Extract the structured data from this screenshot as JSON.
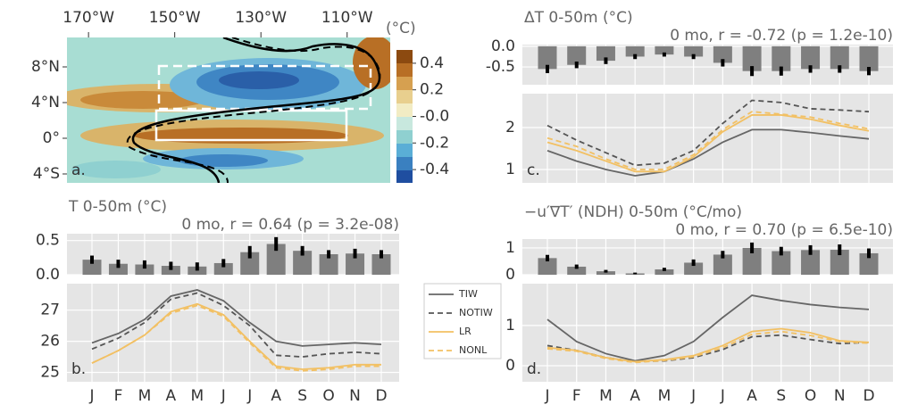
{
  "chart_data": [
    {
      "type": "contour",
      "panel_label": "a.",
      "colorbar_label": "(°C)",
      "xlim": [
        -175,
        -100
      ],
      "ylim": [
        -5,
        11.3
      ],
      "xticks": [
        {
          "value": -170,
          "label": "170°W"
        },
        {
          "value": -150,
          "label": "150°W"
        },
        {
          "value": -130,
          "label": "130°W"
        },
        {
          "value": -110,
          "label": "110°W"
        }
      ],
      "yticks": [
        {
          "value": 8,
          "label": "8°N"
        },
        {
          "value": 4,
          "label": "4°N"
        },
        {
          "value": 0,
          "label": "0°"
        },
        {
          "value": -4,
          "label": "4°S"
        }
      ],
      "clim": [
        -0.5,
        0.5
      ],
      "cticks": [
        0.4,
        0.2,
        {
          "value": 0,
          "label": "-0.0"
        },
        -0.2,
        -0.4
      ]
    },
    {
      "type": "bar",
      "title": "T 0-50m (°C)",
      "subtitle": "0 mo, r = 0.64 (p = 3.2e-08)",
      "values": [
        0.22,
        0.16,
        0.15,
        0.13,
        0.12,
        0.17,
        0.33,
        0.45,
        0.35,
        0.3,
        0.31,
        0.3
      ],
      "errors": [
        0.06,
        0.06,
        0.06,
        0.06,
        0.06,
        0.06,
        0.09,
        0.1,
        0.07,
        0.06,
        0.07,
        0.06
      ],
      "color": "#7f7f7f",
      "ylim": [
        0,
        0.6
      ],
      "yticks": [
        {
          "value": 0,
          "label": "0.0"
        },
        0.5
      ]
    },
    {
      "type": "line",
      "panel_label": "b.",
      "legend": "outside right",
      "categories": [
        "J",
        "F",
        "M",
        "A",
        "M",
        "J",
        "J",
        "A",
        "S",
        "O",
        "N",
        "D"
      ],
      "ylim": [
        24.7,
        27.85
      ],
      "yticks": [
        25,
        26,
        27
      ],
      "series": [
        {
          "name": "TIW",
          "color": "#666666",
          "dash": false,
          "values": [
            25.95,
            26.25,
            26.7,
            27.45,
            27.65,
            27.3,
            26.6,
            26.0,
            25.85,
            25.9,
            25.95,
            25.9
          ]
        },
        {
          "name": "NOTIW",
          "color": "#555555",
          "dash": true,
          "values": [
            25.75,
            26.1,
            26.6,
            27.35,
            27.55,
            27.15,
            26.5,
            25.55,
            25.5,
            25.6,
            25.65,
            25.6
          ]
        },
        {
          "name": "LR",
          "color": "#f2c063",
          "dash": false,
          "values": [
            25.3,
            25.7,
            26.2,
            26.95,
            27.2,
            26.85,
            26.0,
            25.2,
            25.1,
            25.15,
            25.25,
            25.25
          ]
        },
        {
          "name": "NONL",
          "color": "#f2c063",
          "dash": true,
          "values": [
            25.3,
            25.7,
            26.2,
            26.9,
            27.15,
            26.8,
            25.95,
            25.15,
            25.05,
            25.1,
            25.2,
            25.2
          ]
        }
      ]
    },
    {
      "type": "bar",
      "title": "ΔT 0-50m (°C)",
      "subtitle": "0 mo, r = -0.72 (p = 1.2e-10)",
      "values": [
        -0.55,
        -0.45,
        -0.35,
        -0.25,
        -0.2,
        -0.25,
        -0.4,
        -0.6,
        -0.6,
        -0.55,
        -0.55,
        -0.6
      ],
      "errors": [
        0.1,
        0.08,
        0.08,
        0.06,
        0.05,
        0.06,
        0.09,
        0.12,
        0.11,
        0.09,
        0.09,
        0.1
      ],
      "color": "#7f7f7f",
      "ylim": [
        -0.93,
        0.04
      ],
      "yticks": [
        {
          "value": 0,
          "label": "0.0"
        },
        -0.5
      ]
    },
    {
      "type": "line",
      "panel_label": "c.",
      "ylim": [
        0.68,
        2.81
      ],
      "yticks": [
        1,
        2
      ],
      "series": [
        {
          "color": "#666666",
          "dash": false,
          "values": [
            1.45,
            1.2,
            1.0,
            0.85,
            0.95,
            1.25,
            1.65,
            1.95,
            1.95,
            1.88,
            1.8,
            1.73
          ]
        },
        {
          "color": "#555555",
          "dash": true,
          "values": [
            2.05,
            1.7,
            1.4,
            1.1,
            1.15,
            1.45,
            2.1,
            2.65,
            2.6,
            2.45,
            2.42,
            2.38
          ]
        },
        {
          "color": "#f2c063",
          "dash": false,
          "values": [
            1.65,
            1.45,
            1.2,
            0.95,
            0.95,
            1.3,
            1.9,
            2.3,
            2.3,
            2.2,
            2.05,
            1.92
          ]
        },
        {
          "color": "#f2c063",
          "dash": true,
          "values": [
            1.75,
            1.55,
            1.25,
            1.0,
            1.0,
            1.35,
            1.95,
            2.38,
            2.32,
            2.25,
            2.1,
            1.97
          ]
        }
      ]
    },
    {
      "type": "bar",
      "title": "−u′∇T′ (NDH) 0-50m (°C/mo)",
      "subtitle": "0 mo, r = 0.70 (p = 6.5e-10)",
      "values": [
        0.62,
        0.3,
        0.13,
        0.05,
        0.2,
        0.45,
        0.75,
        1.0,
        0.88,
        0.92,
        0.93,
        0.8
      ],
      "errors": [
        0.12,
        0.08,
        0.05,
        0.03,
        0.06,
        0.12,
        0.14,
        0.2,
        0.16,
        0.18,
        0.2,
        0.18
      ],
      "color": "#7f7f7f",
      "ylim": [
        0,
        1.33
      ],
      "yticks": [
        0,
        1
      ]
    },
    {
      "type": "line",
      "panel_label": "d.",
      "categories": [
        "J",
        "F",
        "M",
        "A",
        "M",
        "J",
        "J",
        "A",
        "S",
        "O",
        "N",
        "D"
      ],
      "ylim": [
        -0.4,
        2.04
      ],
      "yticks": [
        0,
        1
      ],
      "series": [
        {
          "color": "#666666",
          "dash": false,
          "values": [
            1.15,
            0.6,
            0.3,
            0.12,
            0.25,
            0.6,
            1.2,
            1.75,
            1.62,
            1.52,
            1.45,
            1.4
          ]
        },
        {
          "color": "#555555",
          "dash": true,
          "values": [
            0.5,
            0.38,
            0.2,
            0.1,
            0.12,
            0.2,
            0.4,
            0.72,
            0.76,
            0.65,
            0.55,
            0.58
          ]
        },
        {
          "color": "#f2c063",
          "dash": false,
          "values": [
            0.45,
            0.38,
            0.2,
            0.1,
            0.15,
            0.25,
            0.5,
            0.85,
            0.92,
            0.82,
            0.62,
            0.58
          ]
        },
        {
          "color": "#f2c063",
          "dash": true,
          "values": [
            0.42,
            0.36,
            0.18,
            0.08,
            0.13,
            0.22,
            0.45,
            0.78,
            0.85,
            0.75,
            0.6,
            0.56
          ]
        }
      ]
    }
  ]
}
